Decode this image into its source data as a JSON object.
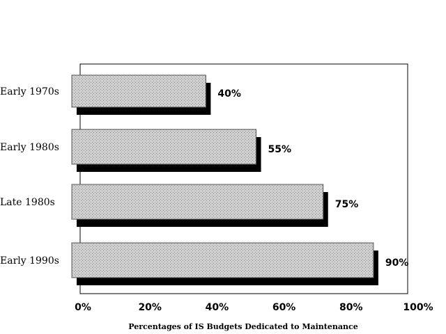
{
  "chart_data": {
    "type": "bar",
    "orientation": "horizontal",
    "categories": [
      "Early 1970s",
      "Early 1980s",
      "Late 1980s",
      "Early 1990s"
    ],
    "values": [
      40,
      55,
      75,
      90
    ],
    "value_labels": [
      "40%",
      "55%",
      "75%",
      "90%"
    ],
    "xlabel": "Percentages of IS Budgets Dedicated to Maintenance",
    "xlim": [
      0,
      100
    ],
    "xticks": [
      0,
      20,
      40,
      60,
      80,
      100
    ],
    "xtick_labels": [
      "0%",
      "20%",
      "40%",
      "60%",
      "80%",
      "100%"
    ],
    "grid": false,
    "legend": "none",
    "colors": {
      "bar_fill": "#b8b8b8",
      "shadow": "#000000",
      "frame": "#000000"
    }
  }
}
